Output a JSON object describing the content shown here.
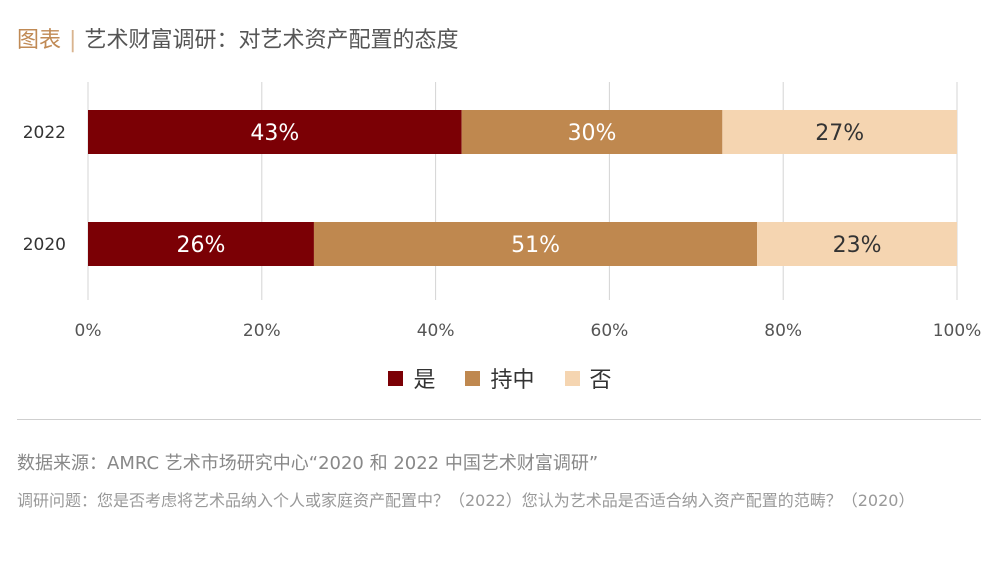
{
  "header": {
    "tag": "图表",
    "separator": "|",
    "title": "艺术财富调研：对艺术资产配置的态度"
  },
  "chart_data": {
    "type": "bar",
    "orientation": "horizontal",
    "stacked": true,
    "categories": [
      "2022",
      "2020"
    ],
    "series": [
      {
        "name": "是",
        "color": "#7b0005",
        "values": [
          43,
          26
        ]
      },
      {
        "name": "持中",
        "color": "#bf884f",
        "values": [
          30,
          51
        ]
      },
      {
        "name": "否",
        "color": "#f5d5b1",
        "values": [
          27,
          23
        ]
      }
    ],
    "xticks": [
      "0%",
      "20%",
      "40%",
      "60%",
      "80%",
      "100%"
    ],
    "xlim": [
      0,
      100
    ],
    "grid": true,
    "legend_position": "bottom"
  },
  "footer": {
    "source": "数据来源：AMRC 艺术市场研究中心“2020 和 2022 中国艺术财富调研”",
    "question": "调研问题：您是否考虑将艺术品纳入个人或家庭资产配置中？（2022）您认为艺术品是否适合纳入资产配置的范畴？（2020）"
  }
}
